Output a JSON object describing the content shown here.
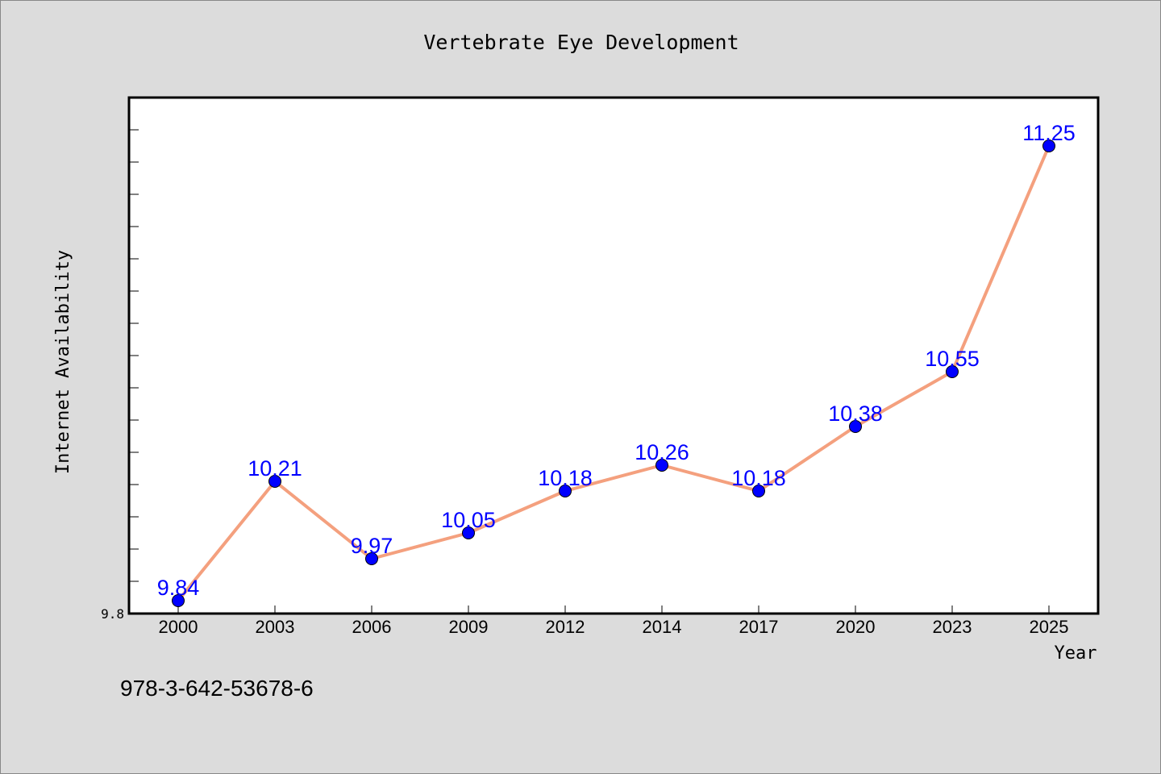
{
  "chart_data": {
    "type": "line",
    "title": "Vertebrate Eye Development",
    "xlabel": "Year",
    "ylabel": "Internet Availability",
    "categories": [
      "2000",
      "2003",
      "2006",
      "2009",
      "2012",
      "2014",
      "2017",
      "2020",
      "2023",
      "2025"
    ],
    "series": [
      {
        "values": [
          9.84,
          10.21,
          9.97,
          10.05,
          10.18,
          10.26,
          10.18,
          10.38,
          10.55,
          11.25
        ]
      }
    ],
    "data_labels": [
      "9.84",
      "10.21",
      "9.97",
      "10.05",
      "10.18",
      "10.26",
      "10.18",
      "10.38",
      "10.55",
      "11.25"
    ],
    "y_tick_labels": [
      "9.8"
    ],
    "ylim": [
      9.8,
      11.4
    ],
    "y_minor_step": 0.1,
    "grid": false,
    "line_color": "#f4a07e",
    "marker_color": "#0000ff",
    "label_color": "#0000ff",
    "background_color": "#dcdcdc",
    "plot_background": "#ffffff"
  },
  "footnote": "978-3-642-53678-6"
}
